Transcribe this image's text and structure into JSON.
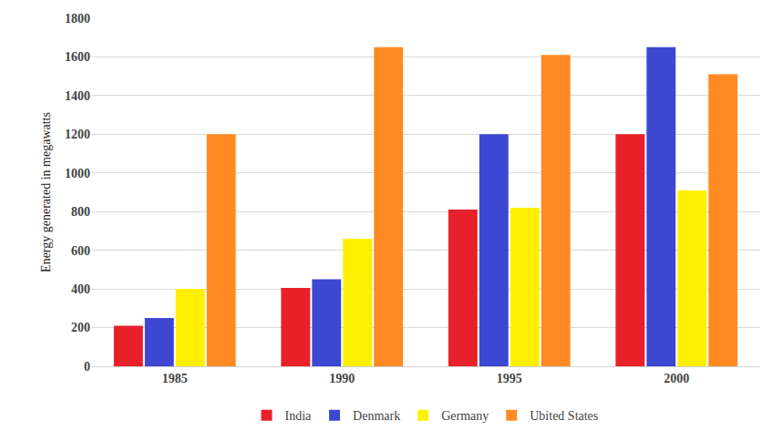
{
  "chart_data": {
    "type": "bar",
    "y_label": "Energy generated in megawatts",
    "categories": [
      "1985",
      "1990",
      "1995",
      "2000"
    ],
    "series": [
      {
        "name": "India",
        "color": "#e8202a",
        "values": [
          210,
          405,
          810,
          1200
        ]
      },
      {
        "name": "Denmark",
        "color": "#3c48d2",
        "values": [
          250,
          450,
          1200,
          1650
        ]
      },
      {
        "name": "Germany",
        "color": "#fff000",
        "values": [
          400,
          660,
          820,
          910
        ]
      },
      {
        "name": "Ubited States",
        "color": "#ff8a24",
        "values": [
          1200,
          1650,
          1610,
          1510
        ]
      }
    ],
    "ylim": [
      0,
      1800
    ],
    "yticks": [
      0,
      200,
      400,
      600,
      800,
      1000,
      1200,
      1400,
      1600,
      1800
    ],
    "grid": true,
    "legend": "bottom"
  }
}
